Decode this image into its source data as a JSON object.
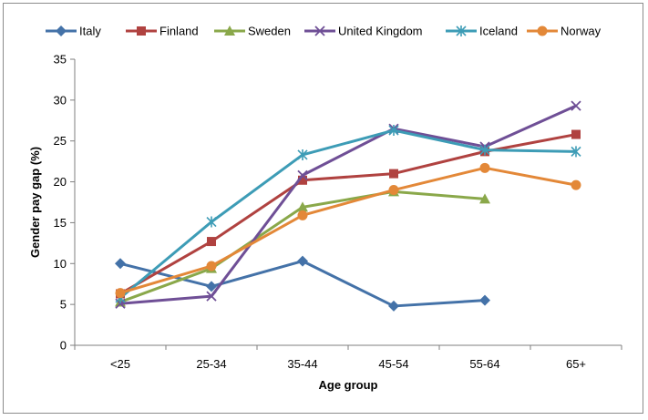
{
  "chart_data": {
    "type": "line",
    "title": "",
    "xlabel": "Age group",
    "ylabel": "Gender pay gap (%)",
    "categories": [
      "<25",
      "25-34",
      "35-44",
      "45-54",
      "55-64",
      "65+"
    ],
    "ylim": [
      0,
      35
    ],
    "yticks": [
      0,
      5,
      10,
      15,
      20,
      25,
      30,
      35
    ],
    "grid": false,
    "legend_position": "top",
    "series": [
      {
        "name": "Italy",
        "color": "#4472a8",
        "marker": "diamond",
        "values": [
          10.0,
          7.2,
          10.3,
          4.8,
          5.5,
          null
        ]
      },
      {
        "name": "Finland",
        "color": "#b04240",
        "marker": "square",
        "values": [
          6.3,
          12.7,
          20.2,
          21.0,
          23.7,
          25.8
        ]
      },
      {
        "name": "Sweden",
        "color": "#8aa84a",
        "marker": "triangle",
        "values": [
          5.3,
          9.4,
          16.9,
          18.8,
          17.9,
          null
        ]
      },
      {
        "name": "United Kingdom",
        "color": "#6f4f96",
        "marker": "x",
        "values": [
          5.1,
          6.0,
          20.8,
          26.5,
          24.3,
          29.3
        ]
      },
      {
        "name": "Iceland",
        "color": "#3d9cb6",
        "marker": "star",
        "values": [
          5.8,
          15.1,
          23.3,
          26.3,
          23.9,
          23.7
        ]
      },
      {
        "name": "Norway",
        "color": "#e38838",
        "marker": "circle",
        "values": [
          6.4,
          9.7,
          15.9,
          19.0,
          21.7,
          19.6
        ]
      }
    ]
  }
}
